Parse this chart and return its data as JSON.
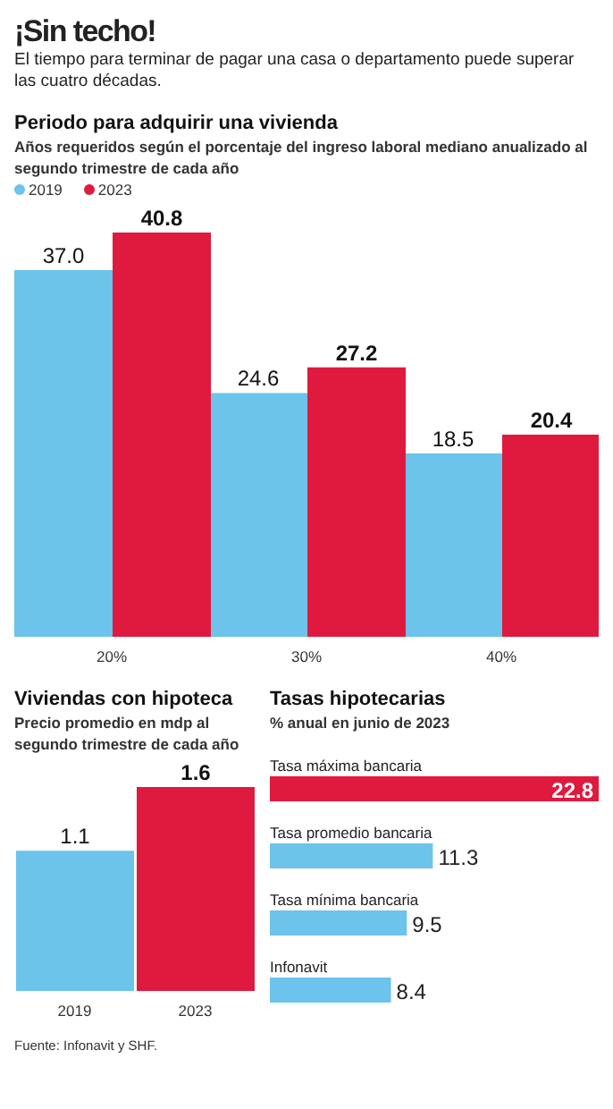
{
  "chart_data": [
    {
      "type": "bar",
      "title": "Periodo para adquirir una vivienda",
      "subtitle": "Años requeridos según el porcentaje del ingreso laboral mediano anualizado al segundo trimestre de cada año",
      "annotations": [
        "¡Sin techo!",
        "El tiempo para terminar de pagar una casa o departamento puede superar las cuatro décadas."
      ],
      "categories": [
        "20%",
        "30%",
        "40%"
      ],
      "series": [
        {
          "name": "2019",
          "color": "#6cc3ec",
          "values": [
            37.0,
            24.6,
            18.5
          ],
          "value_labels": [
            "37.0",
            "24.6",
            "18.5"
          ]
        },
        {
          "name": "2023",
          "color": "#e0193f",
          "values": [
            40.8,
            27.2,
            20.4
          ],
          "value_labels": [
            "40.8",
            "27.2",
            "20.4"
          ]
        }
      ],
      "legend": "top left"
    },
    {
      "type": "bar",
      "title": "Viviendas con hipoteca",
      "subtitle": "Precio promedio en mdp al segundo trimestre de cada año",
      "categories": [
        "2019",
        "2023"
      ],
      "values": [
        1.1,
        1.6
      ],
      "value_labels": [
        "1.1",
        "1.6"
      ],
      "colors": [
        "#6cc3ec",
        "#e0193f"
      ]
    },
    {
      "type": "bar",
      "orientation": "horizontal",
      "title": "Tasas hipotecarias",
      "subtitle": "% anual en junio de 2023",
      "categories": [
        "Tasa máxima bancaria",
        "Tasa promedio bancaria",
        "Tasa mínima bancaria",
        "Infonavit"
      ],
      "values": [
        22.8,
        11.3,
        9.5,
        8.4
      ],
      "value_labels": [
        "22.8",
        "11.3",
        "9.5",
        "8.4"
      ],
      "colors": [
        "#e0193f",
        "#6cc3ec",
        "#6cc3ec",
        "#6cc3ec"
      ],
      "annotations": [
        "Fuente: Infonavit y SHF."
      ]
    }
  ]
}
